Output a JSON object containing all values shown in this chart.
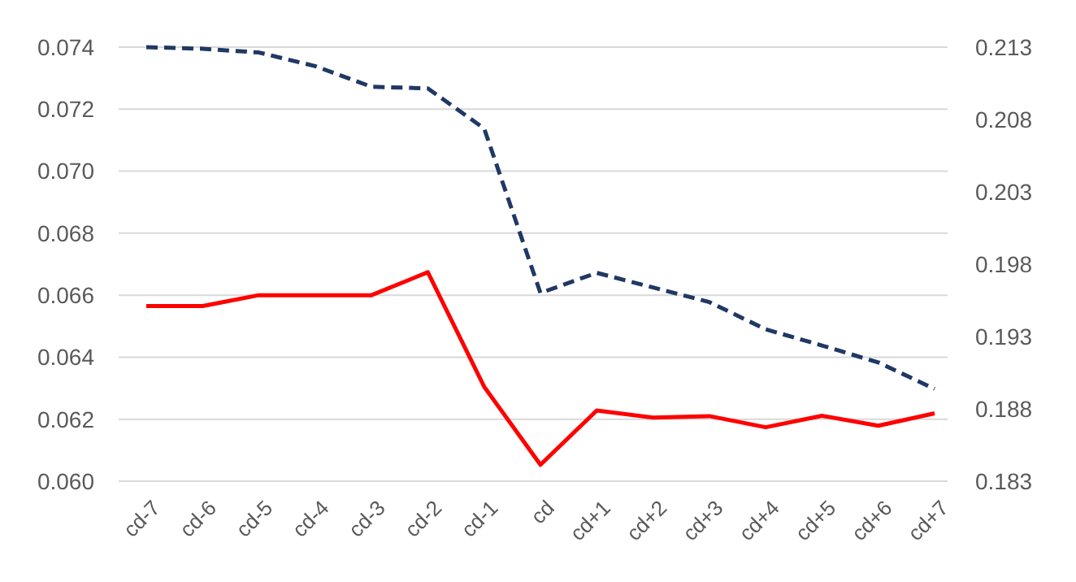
{
  "chart_data": {
    "type": "line",
    "categories": [
      "cd-7",
      "cd-6",
      "cd-5",
      "cd-4",
      "cd-3",
      "cd-2",
      "cd-1",
      "cd",
      "cd+1",
      "cd+2",
      "cd+3",
      "cd+4",
      "cd+5",
      "cd+6",
      "cd+7"
    ],
    "series": [
      {
        "color": "#ff0000",
        "line_style": "solid",
        "values": [
          0.06565,
          0.06565,
          0.066,
          0.066,
          0.066,
          0.06674,
          0.06305,
          0.06053,
          0.06228,
          0.06205,
          0.0621,
          0.06174,
          0.06211,
          0.06179,
          0.06219
        ]
      },
      {
        "color": "#203864",
        "line_style": "dashed",
        "axis": "y2",
        "values": [
          0.213,
          0.21289,
          0.21263,
          0.21169,
          0.21026,
          0.21015,
          0.20738,
          0.19601,
          0.1974,
          0.19639,
          0.19538,
          0.1935,
          0.19238,
          0.19121,
          0.18938
        ]
      }
    ],
    "ylim": [
      0.06,
      0.074
    ],
    "yticks": [
      {
        "value": 0.06,
        "label": "0.060"
      },
      0.062,
      0.064,
      0.066,
      0.068,
      {
        "value": 0.07,
        "label": "0.070"
      },
      0.072,
      0.074
    ],
    "y2lim": [
      0.183,
      0.213
    ],
    "y2ticks": [
      0.183,
      0.188,
      0.193,
      0.198,
      0.203,
      0.208,
      0.213
    ],
    "grid": "y"
  }
}
